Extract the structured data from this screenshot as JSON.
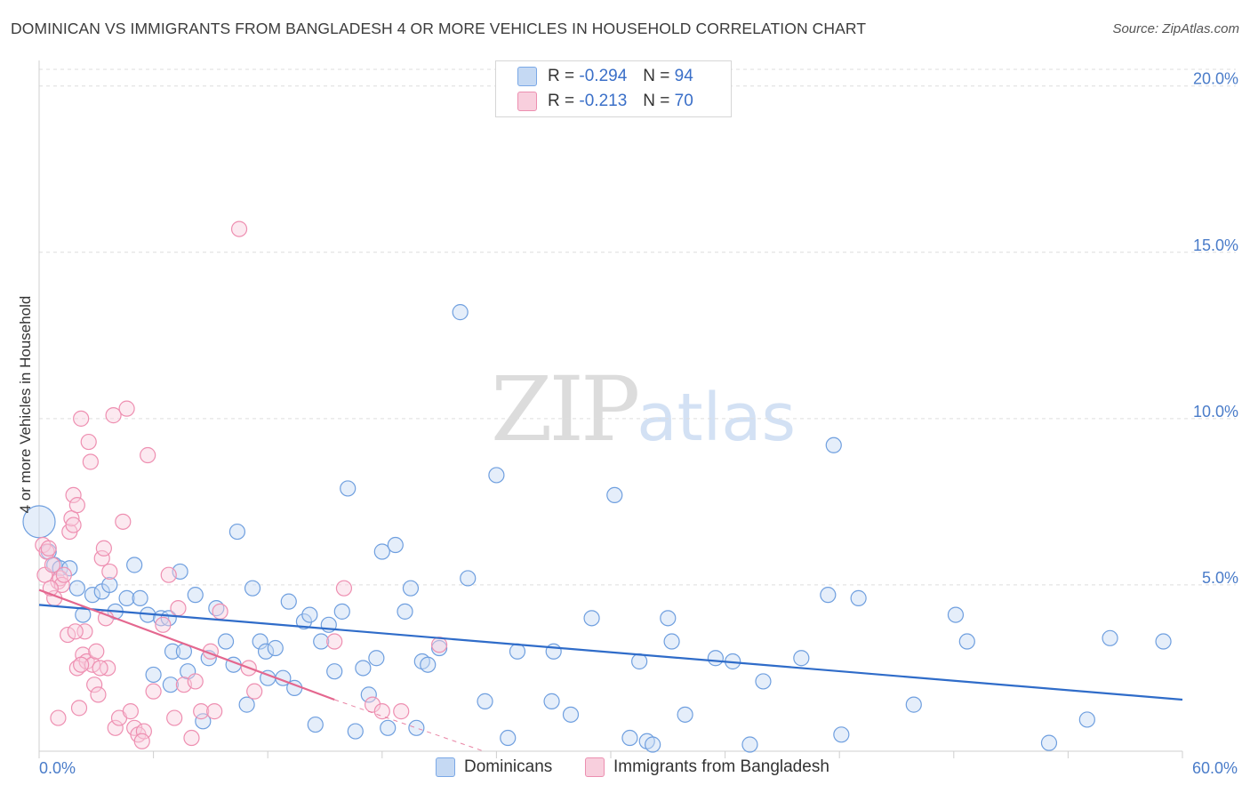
{
  "title": "DOMINICAN VS IMMIGRANTS FROM BANGLADESH 4 OR MORE VEHICLES IN HOUSEHOLD CORRELATION CHART",
  "source": "Source: ZipAtlas.com",
  "watermark": {
    "part1": "ZIP",
    "part2": "atlas"
  },
  "legend": {
    "rows": [
      {
        "r_label": "R =",
        "r_value": "-0.294",
        "n_label": "N =",
        "n_value": "94",
        "color": "#7aa8e6",
        "fill": "#c5d9f3"
      },
      {
        "r_label": "R =",
        "r_value": "-0.213",
        "n_label": "N =",
        "n_value": "70",
        "color": "#ec8fb0",
        "fill": "#f8cfdd"
      }
    ]
  },
  "colors": {
    "blue_point": "#6f9fdf",
    "blue_line": "#2f6cc9",
    "pink_point": "#ee8fb1",
    "pink_line": "#e4678f",
    "tick_text": "#4a7cc9",
    "grid": "#dddddd"
  },
  "chart_data": {
    "type": "scatter",
    "title": "DOMINICAN VS IMMIGRANTS FROM BANGLADESH 4 OR MORE VEHICLES IN HOUSEHOLD CORRELATION CHART",
    "xlabel": "",
    "ylabel": "4 or more Vehicles in Household",
    "xlim": [
      0,
      60
    ],
    "ylim": [
      0,
      20.5
    ],
    "x_ticks": [
      {
        "value": 0,
        "label": "0.0%"
      },
      {
        "value": 60,
        "label": "60.0%"
      }
    ],
    "y_ticks": [
      {
        "value": 5,
        "label": "5.0%"
      },
      {
        "value": 10,
        "label": "10.0%"
      },
      {
        "value": 15,
        "label": "15.0%"
      },
      {
        "value": 20,
        "label": "20.0%"
      }
    ],
    "grid": true,
    "legend_position": "bottom",
    "series": [
      {
        "name": "Dominicans",
        "trend": {
          "x0": 0,
          "y0": 4.4,
          "x1": 60,
          "y1": 1.55
        },
        "points": [
          [
            0,
            6.9
          ],
          [
            0.5,
            6.0
          ],
          [
            0.8,
            5.6
          ],
          [
            1.1,
            5.5
          ],
          [
            1.6,
            5.5
          ],
          [
            2.0,
            4.9
          ],
          [
            2.3,
            4.1
          ],
          [
            2.8,
            4.7
          ],
          [
            3.3,
            4.8
          ],
          [
            3.7,
            5.0
          ],
          [
            4.0,
            4.2
          ],
          [
            4.6,
            4.6
          ],
          [
            5.0,
            5.6
          ],
          [
            5.3,
            4.6
          ],
          [
            5.7,
            4.1
          ],
          [
            6.0,
            2.3
          ],
          [
            6.4,
            4.0
          ],
          [
            6.8,
            4.0
          ],
          [
            7.0,
            3.0
          ],
          [
            7.4,
            5.4
          ],
          [
            7.6,
            3.0
          ],
          [
            7.8,
            2.4
          ],
          [
            8.2,
            4.7
          ],
          [
            8.6,
            0.9
          ],
          [
            8.9,
            2.8
          ],
          [
            9.3,
            4.3
          ],
          [
            9.8,
            3.3
          ],
          [
            10.2,
            2.6
          ],
          [
            10.4,
            6.6
          ],
          [
            10.9,
            1.4
          ],
          [
            11.2,
            4.9
          ],
          [
            11.6,
            3.3
          ],
          [
            11.9,
            3.0
          ],
          [
            12.4,
            3.1
          ],
          [
            12.8,
            2.2
          ],
          [
            13.1,
            4.5
          ],
          [
            13.4,
            1.9
          ],
          [
            13.9,
            3.9
          ],
          [
            14.2,
            4.1
          ],
          [
            14.5,
            0.8
          ],
          [
            14.8,
            3.3
          ],
          [
            15.2,
            3.8
          ],
          [
            15.5,
            2.4
          ],
          [
            15.9,
            4.2
          ],
          [
            16.2,
            7.9
          ],
          [
            16.6,
            0.6
          ],
          [
            17.0,
            2.5
          ],
          [
            17.3,
            1.7
          ],
          [
            17.7,
            2.8
          ],
          [
            18.0,
            6.0
          ],
          [
            18.3,
            0.7
          ],
          [
            18.7,
            6.2
          ],
          [
            19.2,
            4.2
          ],
          [
            19.5,
            4.9
          ],
          [
            19.8,
            0.7
          ],
          [
            20.1,
            2.7
          ],
          [
            20.4,
            2.6
          ],
          [
            21.0,
            3.1
          ],
          [
            22.1,
            13.2
          ],
          [
            23.4,
            1.5
          ],
          [
            24.0,
            8.3
          ],
          [
            24.6,
            0.4
          ],
          [
            25.1,
            3.0
          ],
          [
            26.9,
            1.5
          ],
          [
            27.9,
            1.1
          ],
          [
            30.2,
            7.7
          ],
          [
            31.0,
            0.4
          ],
          [
            31.5,
            2.7
          ],
          [
            31.9,
            0.3
          ],
          [
            32.2,
            0.2
          ],
          [
            33.0,
            4.0
          ],
          [
            33.2,
            3.3
          ],
          [
            33.9,
            1.1
          ],
          [
            35.5,
            2.8
          ],
          [
            36.4,
            2.7
          ],
          [
            37.3,
            0.2
          ],
          [
            38.0,
            2.1
          ],
          [
            40.0,
            2.8
          ],
          [
            41.4,
            4.7
          ],
          [
            41.7,
            9.2
          ],
          [
            42.1,
            0.5
          ],
          [
            43.0,
            4.6
          ],
          [
            45.9,
            1.4
          ],
          [
            48.1,
            4.1
          ],
          [
            48.7,
            3.3
          ],
          [
            53.0,
            0.25
          ],
          [
            55.0,
            0.95
          ],
          [
            56.2,
            3.4
          ],
          [
            59.0,
            3.3
          ],
          [
            29.0,
            4.0
          ],
          [
            27.0,
            3.0
          ],
          [
            22.5,
            5.2
          ],
          [
            12.0,
            2.2
          ],
          [
            6.9,
            2.0
          ]
        ]
      },
      {
        "name": "Immigrants from Bangladesh",
        "trend": {
          "x0": 0,
          "y0": 4.85,
          "x1": 15.5,
          "y1": 1.55,
          "dashed_x1": 40,
          "dashed_y1": -3.3
        },
        "points": [
          [
            0.2,
            6.2
          ],
          [
            0.3,
            5.3
          ],
          [
            0.4,
            6.0
          ],
          [
            0.5,
            6.1
          ],
          [
            0.7,
            5.6
          ],
          [
            0.8,
            4.6
          ],
          [
            1.0,
            5.1
          ],
          [
            1.1,
            5.2
          ],
          [
            1.2,
            5.0
          ],
          [
            1.3,
            5.3
          ],
          [
            1.0,
            1.0
          ],
          [
            1.5,
            3.5
          ],
          [
            1.6,
            6.6
          ],
          [
            1.7,
            7.0
          ],
          [
            1.8,
            6.8
          ],
          [
            1.8,
            7.7
          ],
          [
            2.0,
            2.5
          ],
          [
            2.0,
            7.4
          ],
          [
            2.1,
            1.3
          ],
          [
            2.2,
            10.0
          ],
          [
            2.3,
            2.9
          ],
          [
            2.4,
            3.6
          ],
          [
            2.5,
            2.7
          ],
          [
            2.6,
            9.3
          ],
          [
            2.7,
            8.7
          ],
          [
            2.8,
            2.6
          ],
          [
            2.9,
            2.0
          ],
          [
            3.0,
            3.0
          ],
          [
            3.1,
            1.7
          ],
          [
            3.3,
            5.8
          ],
          [
            3.4,
            6.1
          ],
          [
            3.5,
            4.0
          ],
          [
            3.6,
            2.5
          ],
          [
            3.7,
            5.4
          ],
          [
            3.9,
            10.1
          ],
          [
            4.0,
            0.7
          ],
          [
            4.2,
            1.0
          ],
          [
            4.4,
            6.9
          ],
          [
            4.6,
            10.3
          ],
          [
            4.8,
            1.2
          ],
          [
            5.0,
            0.7
          ],
          [
            5.2,
            0.5
          ],
          [
            5.5,
            0.6
          ],
          [
            5.7,
            8.9
          ],
          [
            6.0,
            1.8
          ],
          [
            6.5,
            3.8
          ],
          [
            6.8,
            5.3
          ],
          [
            7.1,
            1.0
          ],
          [
            7.3,
            4.3
          ],
          [
            7.6,
            2.0
          ],
          [
            8.0,
            0.4
          ],
          [
            8.2,
            2.1
          ],
          [
            8.5,
            1.2
          ],
          [
            9.0,
            3.0
          ],
          [
            9.2,
            1.2
          ],
          [
            9.5,
            4.2
          ],
          [
            10.5,
            15.7
          ],
          [
            11.0,
            2.5
          ],
          [
            11.3,
            1.8
          ],
          [
            15.5,
            3.3
          ],
          [
            16.0,
            4.9
          ],
          [
            17.5,
            1.4
          ],
          [
            18.0,
            1.2
          ],
          [
            19.0,
            1.2
          ],
          [
            21.0,
            3.2
          ],
          [
            1.9,
            3.6
          ],
          [
            2.2,
            2.6
          ],
          [
            0.6,
            4.9
          ],
          [
            3.2,
            2.5
          ],
          [
            5.4,
            0.3
          ]
        ]
      }
    ]
  }
}
